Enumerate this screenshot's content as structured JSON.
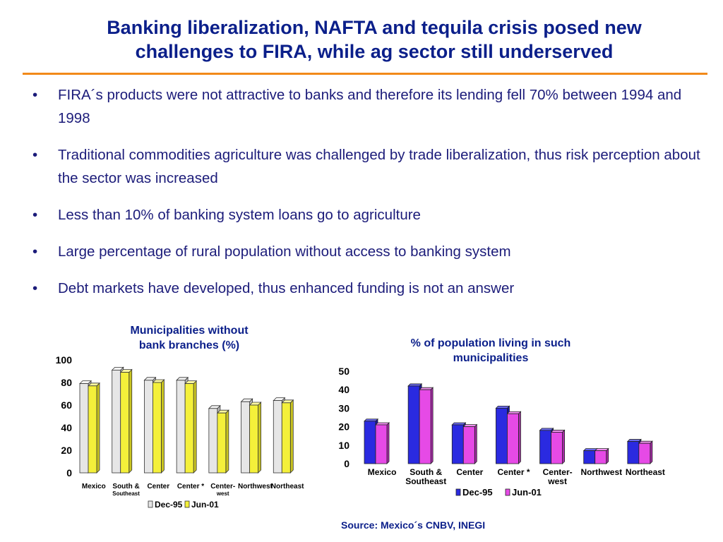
{
  "slide": {
    "title_line1": "Banking liberalization, NAFTA and tequila crisis posed new",
    "title_line2": "challenges to FIRA, while ag sector still underserved",
    "bullet_char": "•",
    "bullets": [
      "FIRA´s products were not attractive to banks and therefore its lending fell 70% between 1994 and 1998",
      "Traditional commodities agriculture was challenged by trade liberalization, thus risk perception about the sector was increased",
      "Less than 10% of banking system loans go to agriculture",
      "Large percentage of rural population without access to banking system",
      "Debt markets have developed, thus enhanced funding is not an answer"
    ],
    "source": "Source: Mexico´s CNBV, INEGI",
    "accent_color": "#f28a1a",
    "title_color": "#0b1f8a"
  },
  "chart_data": [
    {
      "type": "bar",
      "title_line1": "Municipalities without",
      "title_line2": "bank branches (%)",
      "categories": [
        "Mexico",
        "South & Southeast",
        "Center",
        "Center *",
        "Center-west",
        "Northwest",
        "Northeast"
      ],
      "category_label_lines": [
        [
          "Mexico"
        ],
        [
          "South &",
          "Southeast"
        ],
        [
          "Center"
        ],
        [
          "Center *"
        ],
        [
          "Center-",
          "west"
        ],
        [
          "Northwest"
        ],
        [
          "Northeast"
        ]
      ],
      "series": [
        {
          "name": "Dec-95",
          "values": [
            79,
            91,
            82,
            82,
            57,
            63,
            64
          ],
          "color": "#e6e6e6"
        },
        {
          "name": "Jun-01",
          "values": [
            77,
            89,
            80,
            79,
            53,
            60,
            62
          ],
          "color": "#f4f03a"
        }
      ],
      "ylim": [
        0,
        100
      ],
      "yticks": [
        0,
        20,
        40,
        60,
        80,
        100
      ],
      "grid": false,
      "legend": "bottom"
    },
    {
      "type": "bar",
      "title_line1": "% of population living in such",
      "title_line2": "municipalities",
      "categories": [
        "Mexico",
        "South & Southeast",
        "Center",
        "Center *",
        "Center-west",
        "Northwest",
        "Northeast"
      ],
      "category_label_lines": [
        [
          "Mexico"
        ],
        [
          "South &",
          "Southeast"
        ],
        [
          "Center"
        ],
        [
          "Center *"
        ],
        [
          "Center-",
          "west"
        ],
        [
          "Northwest"
        ],
        [
          "Northeast"
        ]
      ],
      "series": [
        {
          "name": "Dec-95",
          "values": [
            23,
            42,
            21,
            30,
            18,
            7,
            12
          ],
          "color": "#2a2ae0"
        },
        {
          "name": "Jun-01",
          "values": [
            21,
            40,
            20,
            27,
            17,
            7,
            11
          ],
          "color": "#e64ae6"
        }
      ],
      "ylim": [
        0,
        50
      ],
      "yticks": [
        0,
        10,
        20,
        30,
        40,
        50
      ],
      "grid": false,
      "legend": "bottom"
    }
  ]
}
